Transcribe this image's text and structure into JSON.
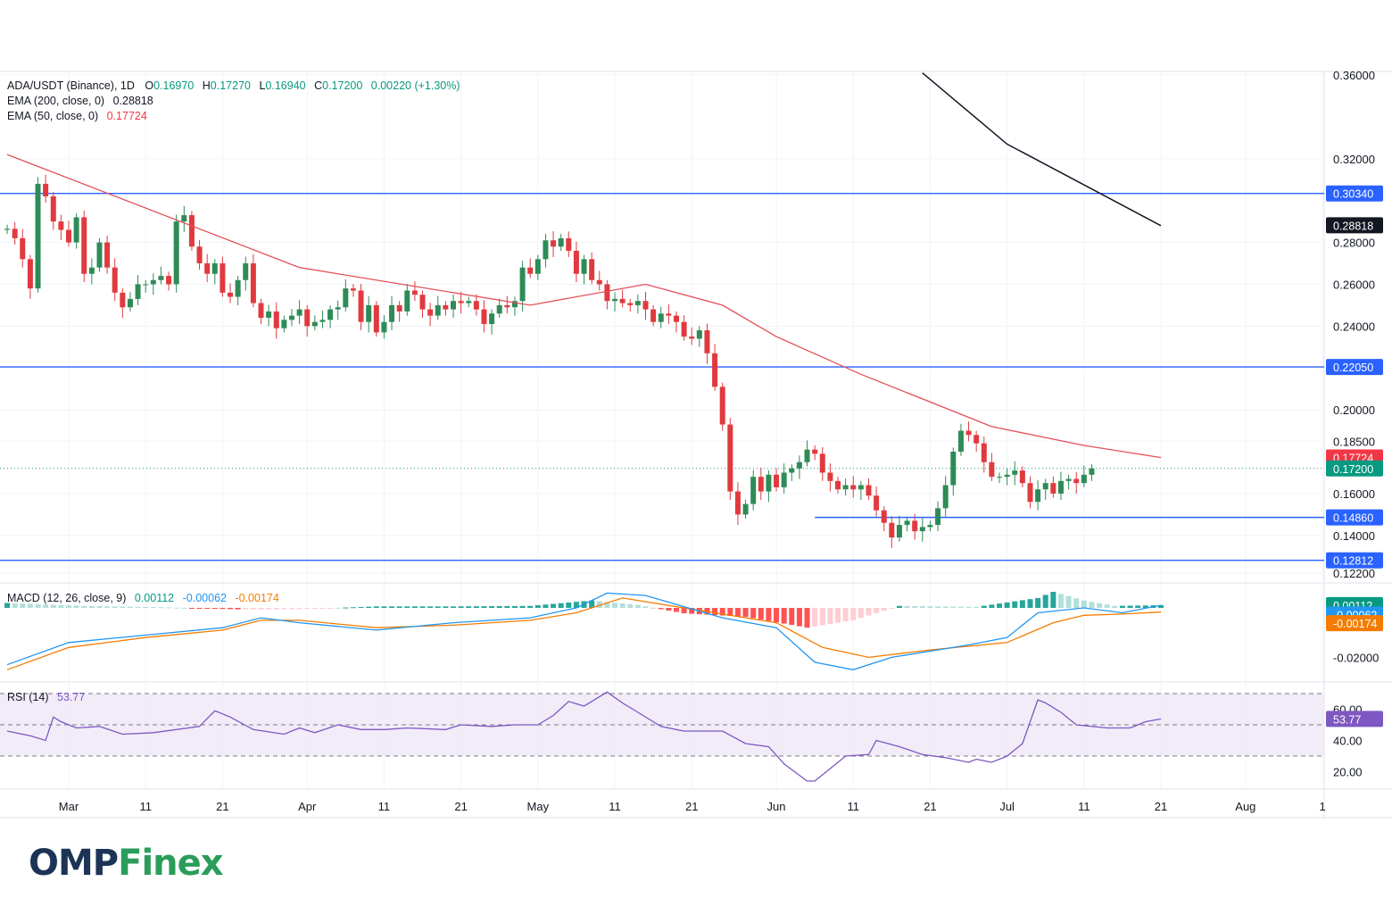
{
  "colors": {
    "up": "#2e8b57",
    "down": "#e03a3e",
    "ema200": "#131722",
    "ema50": "#e4505a",
    "level": "#2962ff",
    "macd": "#2196f3",
    "signal": "#f57c00",
    "rsi": "#7e57c2",
    "rsi_band": "#ede7f6",
    "up_value": "#089981",
    "tag_price": "#089981",
    "tag_ema50": "#f23645",
    "tag_ema200": "#131722",
    "tag_level": "#2962ff",
    "tag_signal": "#f57c00",
    "tag_rsi": "#7e57c2"
  },
  "header": {
    "symbol": "ADA/USDT (Binance), 1D",
    "o_label": "O",
    "o_value": "0.16970",
    "h_label": "H",
    "h_value": "0.17270",
    "l_label": "L",
    "l_value": "0.16940",
    "c_label": "C",
    "c_value": "0.17200",
    "change": "0.00220 (+1.30%)",
    "ema200_label": "EMA (200, close, 0)",
    "ema200_value": "0.28818",
    "ema50_label": "EMA (50, close, 0)",
    "ema50_value": "0.17724"
  },
  "macd_legend": {
    "label": "MACD (12, 26, close, 9)",
    "v1": "0.00112",
    "v2": "-0.00062",
    "v3": "-0.00174"
  },
  "rsi_legend": {
    "label": "RSI (14)",
    "value": "53.77"
  },
  "logo": {
    "part1": "OMP",
    "part2": "Finex"
  },
  "chart_data": {
    "type": "candlestick",
    "price_axis": {
      "ylim": [
        0.115,
        0.365
      ],
      "ticks": [
        "0.36000",
        "0.32000",
        "0.28000",
        "0.26000",
        "0.24000",
        "0.20000",
        "0.18500",
        "0.16000",
        "0.14000",
        "0.12200"
      ]
    },
    "x_labels": [
      "Mar",
      "11",
      "21",
      "Apr",
      "11",
      "21",
      "May",
      "11",
      "21",
      "Jun",
      "11",
      "21",
      "Jul",
      "11",
      "21",
      "Aug",
      "1"
    ],
    "x_label_days": [
      0,
      10,
      20,
      31,
      41,
      51,
      61,
      71,
      81,
      92,
      102,
      112,
      122,
      132,
      142,
      153,
      163
    ],
    "first_candle_day": -8,
    "closes": [
      0.2865,
      0.282,
      0.272,
      0.258,
      0.308,
      0.302,
      0.29,
      0.286,
      0.28,
      0.292,
      0.265,
      0.268,
      0.28,
      0.268,
      0.256,
      0.249,
      0.253,
      0.26,
      0.26,
      0.262,
      0.264,
      0.26,
      0.29,
      0.293,
      0.278,
      0.27,
      0.265,
      0.27,
      0.256,
      0.254,
      0.262,
      0.27,
      0.251,
      0.244,
      0.247,
      0.239,
      0.243,
      0.245,
      0.248,
      0.24,
      0.242,
      0.243,
      0.248,
      0.249,
      0.258,
      0.257,
      0.242,
      0.25,
      0.237,
      0.242,
      0.25,
      0.247,
      0.257,
      0.255,
      0.248,
      0.245,
      0.25,
      0.248,
      0.252,
      0.251,
      0.252,
      0.248,
      0.241,
      0.246,
      0.25,
      0.249,
      0.252,
      0.268,
      0.265,
      0.272,
      0.281,
      0.278,
      0.282,
      0.276,
      0.265,
      0.272,
      0.262,
      0.26,
      0.252,
      0.253,
      0.251,
      0.25,
      0.252,
      0.248,
      0.242,
      0.246,
      0.245,
      0.242,
      0.235,
      0.234,
      0.238,
      0.227,
      0.211,
      0.193,
      0.161,
      0.15,
      0.155,
      0.168,
      0.161,
      0.169,
      0.163,
      0.17,
      0.172,
      0.175,
      0.181,
      0.179,
      0.17,
      0.166,
      0.162,
      0.164,
      0.162,
      0.164,
      0.159,
      0.152,
      0.146,
      0.139,
      0.145,
      0.147,
      0.142,
      0.144,
      0.145,
      0.153,
      0.164,
      0.18,
      0.19,
      0.188,
      0.184,
      0.175,
      0.168,
      0.168,
      0.169,
      0.171,
      0.165,
      0.156,
      0.162,
      0.165,
      0.16,
      0.166,
      0.167,
      0.165,
      0.169,
      0.172
    ],
    "last_price": "0.17200",
    "ema200": [
      [
        111,
        0.361
      ],
      [
        122,
        0.327
      ],
      [
        142,
        0.288
      ]
    ],
    "ema50": [
      [
        -8,
        0.322
      ],
      [
        30,
        0.268
      ],
      [
        60,
        0.25
      ],
      [
        75,
        0.26
      ],
      [
        85,
        0.25
      ],
      [
        92,
        0.235
      ],
      [
        103,
        0.217
      ],
      [
        120,
        0.192
      ],
      [
        132,
        0.183
      ],
      [
        142,
        0.1772
      ]
    ],
    "levels": [
      {
        "value": 0.3034,
        "label": "0.30340",
        "from_day": -8
      },
      {
        "value": 0.2205,
        "label": "0.22050",
        "from_day": -8
      },
      {
        "value": 0.1486,
        "label": "0.14860",
        "from_day": 97
      },
      {
        "value": 0.1281,
        "label": "0.12812",
        "from_day": -8
      }
    ],
    "price_tags": [
      {
        "label": "0.30340",
        "value": 0.3034,
        "color": "tag_level"
      },
      {
        "label": "0.28818",
        "value": 0.28818,
        "color": "tag_ema200"
      },
      {
        "label": "0.22050",
        "value": 0.2205,
        "color": "tag_level"
      },
      {
        "label": "0.17724",
        "value": 0.17724,
        "color": "tag_ema50"
      },
      {
        "label": "0.17200",
        "value": 0.172,
        "color": "tag_price"
      },
      {
        "label": "0.14860",
        "value": 0.1486,
        "color": "tag_level"
      },
      {
        "label": "0.12812",
        "value": 0.1281,
        "color": "tag_level"
      }
    ],
    "macd": {
      "ylim": [
        -0.03,
        0.01
      ],
      "ticks": [
        "-0.02000"
      ],
      "macd_line": [
        [
          -8,
          -0.023
        ],
        [
          0,
          -0.014
        ],
        [
          10,
          -0.011
        ],
        [
          20,
          -0.008
        ],
        [
          25,
          -0.004
        ],
        [
          30,
          -0.006
        ],
        [
          40,
          -0.009
        ],
        [
          50,
          -0.006
        ],
        [
          60,
          -0.004
        ],
        [
          66,
          0.0
        ],
        [
          70,
          0.006
        ],
        [
          75,
          0.005
        ],
        [
          85,
          -0.004
        ],
        [
          92,
          -0.008
        ],
        [
          97,
          -0.022
        ],
        [
          102,
          -0.025
        ],
        [
          107,
          -0.02
        ],
        [
          117,
          -0.015
        ],
        [
          122,
          -0.012
        ],
        [
          126,
          -0.002
        ],
        [
          132,
          0.0
        ],
        [
          137,
          -0.002
        ],
        [
          142,
          0.0011
        ]
      ],
      "signal_line": [
        [
          -8,
          -0.025
        ],
        [
          0,
          -0.016
        ],
        [
          10,
          -0.012
        ],
        [
          20,
          -0.009
        ],
        [
          25,
          -0.005
        ],
        [
          30,
          -0.005
        ],
        [
          40,
          -0.008
        ],
        [
          50,
          -0.007
        ],
        [
          60,
          -0.005
        ],
        [
          66,
          -0.002
        ],
        [
          72,
          0.004
        ],
        [
          80,
          0.0
        ],
        [
          92,
          -0.006
        ],
        [
          98,
          -0.016
        ],
        [
          104,
          -0.02
        ],
        [
          112,
          -0.017
        ],
        [
          122,
          -0.014
        ],
        [
          128,
          -0.006
        ],
        [
          132,
          -0.003
        ],
        [
          137,
          -0.0025
        ],
        [
          142,
          -0.0017
        ]
      ],
      "hist": [
        [
          -8,
          0.002
        ],
        [
          2,
          0.0008
        ],
        [
          12,
          0.0003
        ],
        [
          22,
          -0.0006
        ],
        [
          30,
          -0.0005
        ],
        [
          40,
          0.0006
        ],
        [
          50,
          0.0006
        ],
        [
          60,
          0.0008
        ],
        [
          68,
          0.003
        ],
        [
          74,
          0.0012
        ],
        [
          80,
          -0.0022
        ],
        [
          88,
          -0.0036
        ],
        [
          96,
          -0.008
        ],
        [
          102,
          -0.005
        ],
        [
          108,
          0.0008
        ],
        [
          118,
          0.0004
        ],
        [
          126,
          0.004
        ],
        [
          128,
          0.0065
        ],
        [
          132,
          0.003
        ],
        [
          136,
          0.0008
        ],
        [
          142,
          0.0011
        ]
      ],
      "tags": [
        {
          "label": "0.00112",
          "value": 0.00112,
          "color": "tag_price"
        },
        {
          "label": "-0.00062",
          "value": -0.0027,
          "color": "macd"
        },
        {
          "label": "-0.00174",
          "value": -0.0062,
          "color": "tag_signal"
        }
      ]
    },
    "rsi": {
      "ylim": [
        10,
        82
      ],
      "band": [
        30,
        70
      ],
      "midline": 50,
      "ticks": [
        "60.00",
        "40.00",
        "20.00"
      ],
      "line": [
        [
          -8,
          46
        ],
        [
          -5,
          43
        ],
        [
          -3,
          40
        ],
        [
          -2,
          55
        ],
        [
          -1,
          52
        ],
        [
          1,
          48
        ],
        [
          4,
          49
        ],
        [
          7,
          44
        ],
        [
          11,
          45
        ],
        [
          17,
          49
        ],
        [
          19,
          59
        ],
        [
          21,
          55
        ],
        [
          24,
          47
        ],
        [
          28,
          44
        ],
        [
          30,
          48
        ],
        [
          32,
          45
        ],
        [
          35,
          50
        ],
        [
          38,
          47
        ],
        [
          41,
          47
        ],
        [
          44,
          48
        ],
        [
          49,
          47
        ],
        [
          51,
          50
        ],
        [
          55,
          49
        ],
        [
          58,
          50
        ],
        [
          61,
          50
        ],
        [
          63,
          56
        ],
        [
          65,
          65
        ],
        [
          67,
          62
        ],
        [
          70,
          71
        ],
        [
          72,
          64
        ],
        [
          74,
          58
        ],
        [
          77,
          49
        ],
        [
          80,
          46
        ],
        [
          85,
          46
        ],
        [
          88,
          38
        ],
        [
          91,
          36
        ],
        [
          93,
          25
        ],
        [
          96,
          14
        ],
        [
          97,
          14
        ],
        [
          99,
          22
        ],
        [
          101,
          30
        ],
        [
          104,
          31
        ],
        [
          105,
          40
        ],
        [
          108,
          36
        ],
        [
          111,
          31
        ],
        [
          114,
          29
        ],
        [
          117,
          26
        ],
        [
          118,
          28
        ],
        [
          120,
          26
        ],
        [
          122,
          30
        ],
        [
          124,
          38
        ],
        [
          126,
          66
        ],
        [
          127,
          64
        ],
        [
          129,
          58
        ],
        [
          131,
          50
        ],
        [
          135,
          48
        ],
        [
          138,
          48
        ],
        [
          140,
          52
        ],
        [
          142,
          53.77
        ]
      ],
      "tag": {
        "label": "53.77",
        "value": 53.77
      }
    }
  }
}
